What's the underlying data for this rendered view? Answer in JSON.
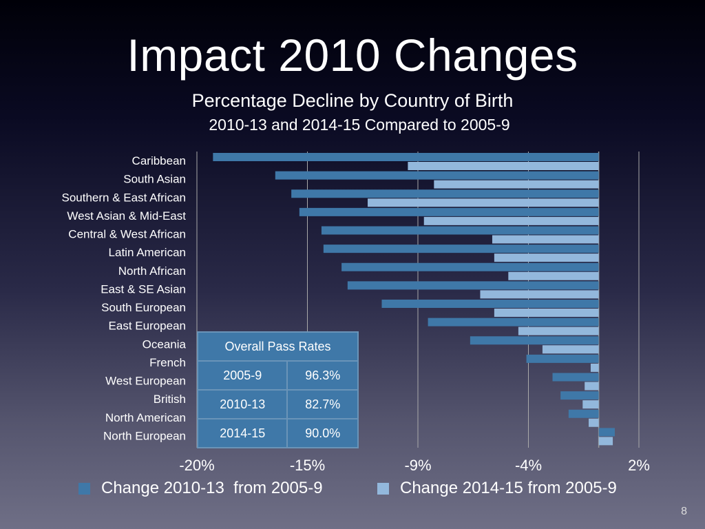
{
  "title": "Impact 2010 Changes",
  "subtitle1": "Percentage Decline by Country of Birth",
  "subtitle2": "2010-13 and 2014-15 Compared to 2005-9",
  "page_number": "8",
  "colors": {
    "series1": "#3f78a8",
    "series2": "#93b8dc",
    "grid": "#aaaaaa"
  },
  "pass_rates": {
    "header": "Overall Pass Rates",
    "rows": [
      {
        "period": "2005-9",
        "rate": "96.3%"
      },
      {
        "period": "2010-13",
        "rate": "82.7%"
      },
      {
        "period": "2014-15",
        "rate": "90.0%"
      }
    ]
  },
  "chart_data": {
    "type": "bar",
    "orientation": "horizontal",
    "title": "Percentage Decline by Country of Birth",
    "xlabel": "",
    "ylabel": "",
    "xlim": [
      -20,
      2
    ],
    "xticks": [
      -20,
      -14.5,
      -9,
      -3.5,
      2
    ],
    "xtick_labels": [
      "-20%",
      "-15%",
      "-9%",
      "-4%",
      "2%"
    ],
    "grid": true,
    "legend_position": "bottom",
    "categories": [
      "Caribbean",
      "South Asian",
      "Southern & East African",
      "West Asian & Mid-East",
      "Central & West African",
      "Latin American",
      "North African",
      "East & SE Asian",
      "South European",
      "East European",
      "Oceania",
      "French",
      "West European",
      "British",
      "North American",
      "North European"
    ],
    "series": [
      {
        "name": "Change 2010-13  from 2005-9",
        "values": [
          -19.2,
          -16.1,
          -15.3,
          -14.9,
          -13.8,
          -13.7,
          -12.8,
          -12.5,
          -10.8,
          -8.5,
          -6.4,
          -3.6,
          -2.3,
          -1.9,
          -1.5,
          0.8
        ]
      },
      {
        "name": "Change 2014-15 from 2005-9",
        "values": [
          -9.5,
          -8.2,
          -11.5,
          -8.7,
          -5.3,
          -5.2,
          -4.5,
          -5.9,
          -5.2,
          -4.0,
          -2.8,
          -0.4,
          -0.7,
          -0.8,
          -0.5,
          0.7
        ]
      }
    ]
  }
}
